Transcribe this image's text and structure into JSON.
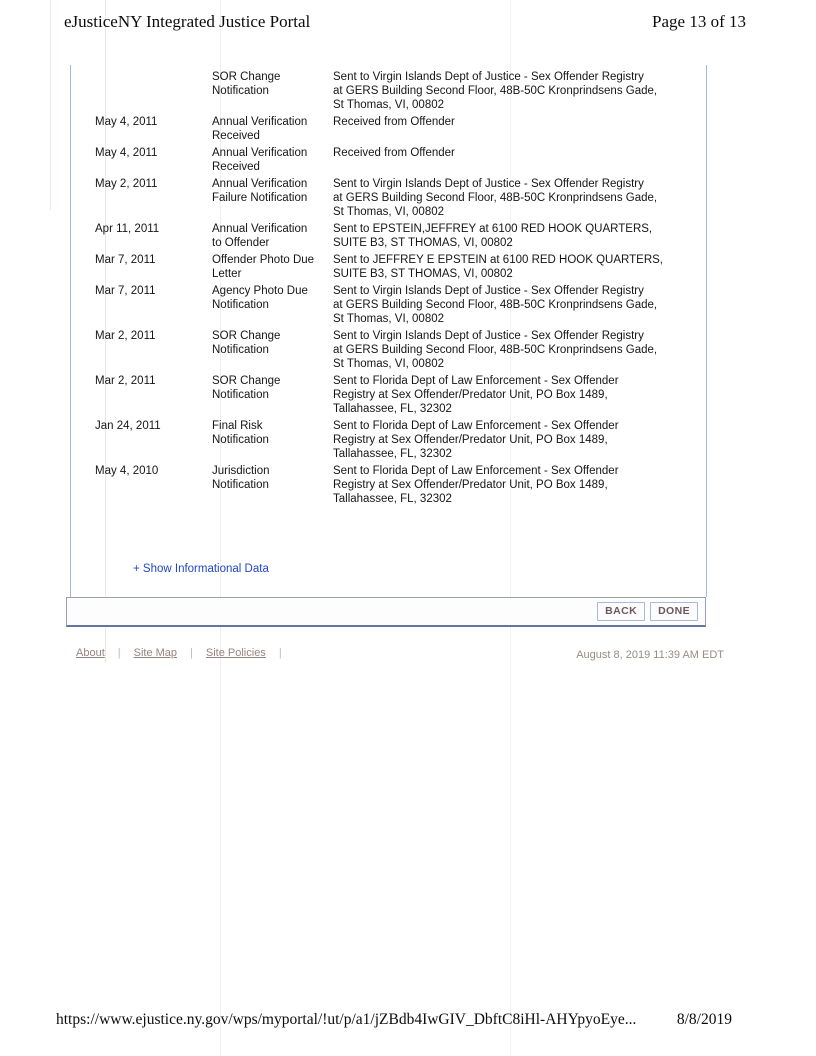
{
  "header": {
    "title": "eJusticeNY Integrated Justice Portal",
    "page_label": "Page 13 of 13"
  },
  "table": {
    "rows": [
      {
        "date": "",
        "type": "SOR Change\nNotification",
        "desc": "Sent to Virgin Islands Dept of Justice - Sex Offender Registry\nat GERS Building Second Floor, 48B-50C Kronprindsens Gade,\nSt Thomas, VI, 00802"
      },
      {
        "date": "May 4, 2011",
        "type": "Annual Verification\nReceived",
        "desc": "Received from Offender"
      },
      {
        "date": "May 4, 2011",
        "type": "Annual Verification\nReceived",
        "desc": "Received from Offender"
      },
      {
        "date": "May 2, 2011",
        "type": "Annual Verification\nFailure Notification",
        "desc": "Sent to Virgin Islands Dept of Justice - Sex Offender Registry\nat GERS Building Second Floor, 48B-50C Kronprindsens Gade,\nSt Thomas, VI, 00802"
      },
      {
        "date": "Apr 11, 2011",
        "type": "Annual Verification\nto Offender",
        "desc": "Sent to EPSTEIN,JEFFREY at 6100 RED HOOK QUARTERS,\nSUITE B3, ST THOMAS, VI, 00802"
      },
      {
        "date": "Mar 7, 2011",
        "type": "Offender Photo Due\nLetter",
        "desc": "Sent to JEFFREY E EPSTEIN at 6100 RED HOOK QUARTERS,\nSUITE B3, ST THOMAS, VI, 00802"
      },
      {
        "date": "Mar 7, 2011",
        "type": "Agency Photo Due\nNotification",
        "desc": "Sent to Virgin Islands Dept of Justice - Sex Offender Registry\nat GERS Building Second Floor, 48B-50C Kronprindsens Gade,\nSt Thomas, VI, 00802"
      },
      {
        "date": "Mar 2, 2011",
        "type": "SOR Change\nNotification",
        "desc": "Sent to Virgin Islands Dept of Justice - Sex Offender Registry\nat GERS Building Second Floor, 48B-50C Kronprindsens Gade,\nSt Thomas, VI, 00802"
      },
      {
        "date": "Mar 2, 2011",
        "type": "SOR Change\nNotification",
        "desc": "Sent to Florida Dept of Law Enforcement - Sex Offender\nRegistry at Sex Offender/Predator Unit, PO Box 1489,\nTallahassee, FL, 32302"
      },
      {
        "date": "Jan 24, 2011",
        "type": "Final Risk\nNotification",
        "desc": "Sent to Florida Dept of Law Enforcement - Sex Offender\nRegistry at Sex Offender/Predator Unit, PO Box 1489,\nTallahassee, FL, 32302"
      },
      {
        "date": "May 4, 2010",
        "type": "Jurisdiction\nNotification",
        "desc": "Sent to Florida Dept of Law Enforcement - Sex Offender\nRegistry at Sex Offender/Predator Unit, PO Box 1489,\nTallahassee, FL, 32302"
      }
    ]
  },
  "actions": {
    "show_informational_data": "+ Show Informational Data",
    "back_label": "BACK",
    "done_label": "DONE"
  },
  "footer": {
    "links": [
      "About",
      "Site Map",
      "Site Policies"
    ],
    "separator": "|",
    "timestamp": "August 8, 2019 11:39 AM EDT"
  },
  "print_footer": {
    "url": "https://www.ejustice.ny.gov/wps/myportal/!ut/p/a1/jZBdb4IwGIV_DbftC8iHl-AHYpyoEye...",
    "date": "8/8/2019"
  },
  "colors": {
    "link_blue": "#2244cc",
    "button_text": "#6d585c",
    "button_border": "#a9bad6",
    "panel_border": "#a9b7c9",
    "footer_gray": "#97837f"
  }
}
